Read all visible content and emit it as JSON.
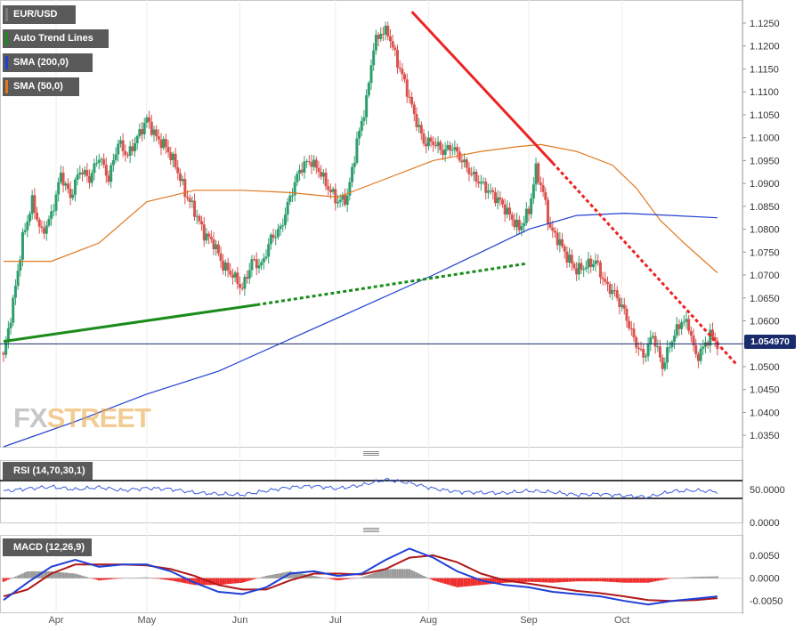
{
  "legend": [
    {
      "label": "EUR/USD",
      "color": "#7a7a7a"
    },
    {
      "label": "Auto Trend Lines",
      "color": "#1a8c1a"
    },
    {
      "label": "SMA (200,0)",
      "color": "#2040d0"
    },
    {
      "label": "SMA (50,0)",
      "color": "#e07820"
    }
  ],
  "current_price_label": "1.054970",
  "watermark": {
    "fx": "FX",
    "street": "STREET"
  },
  "rsi_label": "RSI (14,70,30,1)",
  "macd_label": "MACD (12,26,9)",
  "colors": {
    "up": "#2f9e6e",
    "down": "#d9534f",
    "sma200": "#2040d0",
    "sma50": "#e07820",
    "trend_green": "#1a8c1a",
    "trend_red": "#ee2222",
    "rsi": "#3b5bdb",
    "macd": "#1f3fd6",
    "signal": "#b01818",
    "hist_pos": "#9a9a9a",
    "hist_neg": "#ee2a2a"
  },
  "chart_data": [
    {
      "type": "candlestick",
      "title": "EUR/USD",
      "x_labels": [
        "Apr",
        "May",
        "Jun",
        "Jul",
        "Aug",
        "Sep",
        "Oct"
      ],
      "y_ticks": [
        "1.1250",
        "1.1200",
        "1.1150",
        "1.1100",
        "1.1050",
        "1.1000",
        "1.0950",
        "1.0900",
        "1.0850",
        "1.0800",
        "1.0750",
        "1.0700",
        "1.0650",
        "1.0600",
        "1.0550",
        "1.0500",
        "1.0450",
        "1.0400",
        "1.0350"
      ],
      "ylim": [
        1.0325,
        1.1285
      ],
      "close_points": [
        [
          0,
          1.052
        ],
        [
          4,
          1.064
        ],
        [
          8,
          1.078
        ],
        [
          12,
          1.086
        ],
        [
          16,
          1.079
        ],
        [
          20,
          1.083
        ],
        [
          24,
          1.092
        ],
        [
          28,
          1.087
        ],
        [
          32,
          1.093
        ],
        [
          36,
          1.091
        ],
        [
          40,
          1.096
        ],
        [
          44,
          1.091
        ],
        [
          48,
          1.099
        ],
        [
          52,
          1.096
        ],
        [
          56,
          1.1
        ],
        [
          60,
          1.104
        ],
        [
          64,
          1.1
        ],
        [
          68,
          1.098
        ],
        [
          72,
          1.094
        ],
        [
          76,
          1.088
        ],
        [
          80,
          1.084
        ],
        [
          84,
          1.079
        ],
        [
          88,
          1.077
        ],
        [
          92,
          1.072
        ],
        [
          96,
          1.07
        ],
        [
          100,
          1.067
        ],
        [
          104,
          1.073
        ],
        [
          108,
          1.072
        ],
        [
          112,
          1.078
        ],
        [
          116,
          1.08
        ],
        [
          120,
          1.087
        ],
        [
          124,
          1.093
        ],
        [
          128,
          1.095
        ],
        [
          132,
          1.093
        ],
        [
          136,
          1.089
        ],
        [
          140,
          1.086
        ],
        [
          144,
          1.087
        ],
        [
          148,
          1.099
        ],
        [
          152,
          1.108
        ],
        [
          155,
          1.12
        ],
        [
          158,
          1.123
        ],
        [
          161,
          1.123
        ],
        [
          164,
          1.118
        ],
        [
          168,
          1.112
        ],
        [
          172,
          1.105
        ],
        [
          176,
          1.099
        ],
        [
          180,
          1.099
        ],
        [
          184,
          1.097
        ],
        [
          188,
          1.098
        ],
        [
          192,
          1.095
        ],
        [
          196,
          1.092
        ],
        [
          200,
          1.09
        ],
        [
          204,
          1.088
        ],
        [
          208,
          1.086
        ],
        [
          212,
          1.083
        ],
        [
          216,
          1.08
        ],
        [
          220,
          1.084
        ],
        [
          223,
          1.093
        ],
        [
          226,
          1.088
        ],
        [
          229,
          1.08
        ],
        [
          232,
          1.078
        ],
        [
          236,
          1.074
        ],
        [
          240,
          1.071
        ],
        [
          244,
          1.072
        ],
        [
          248,
          1.073
        ],
        [
          252,
          1.068
        ],
        [
          256,
          1.066
        ],
        [
          260,
          1.062
        ],
        [
          264,
          1.056
        ],
        [
          268,
          1.052
        ],
        [
          272,
          1.057
        ],
        [
          276,
          1.05
        ],
        [
          280,
          1.056
        ],
        [
          284,
          1.06
        ],
        [
          287,
          1.059
        ],
        [
          290,
          1.052
        ],
        [
          293,
          1.054
        ],
        [
          296,
          1.057
        ],
        [
          299,
          1.055
        ]
      ],
      "sma50": [
        [
          0,
          1.073
        ],
        [
          20,
          1.073
        ],
        [
          40,
          1.077
        ],
        [
          60,
          1.086
        ],
        [
          80,
          1.0885
        ],
        [
          100,
          1.0885
        ],
        [
          120,
          1.088
        ],
        [
          140,
          1.087
        ],
        [
          160,
          1.091
        ],
        [
          180,
          1.095
        ],
        [
          200,
          1.097
        ],
        [
          215,
          1.098
        ],
        [
          225,
          1.0985
        ],
        [
          240,
          1.097
        ],
        [
          255,
          1.094
        ],
        [
          265,
          1.089
        ],
        [
          275,
          1.082
        ],
        [
          285,
          1.077
        ],
        [
          299,
          1.0705
        ]
      ],
      "sma200": [
        [
          0,
          1.0325
        ],
        [
          30,
          1.038
        ],
        [
          60,
          1.044
        ],
        [
          90,
          1.049
        ],
        [
          120,
          1.056
        ],
        [
          150,
          1.063
        ],
        [
          180,
          1.07
        ],
        [
          200,
          1.075
        ],
        [
          220,
          1.08
        ],
        [
          240,
          1.083
        ],
        [
          260,
          1.0835
        ],
        [
          280,
          1.083
        ],
        [
          299,
          1.0825
        ]
      ],
      "trend_green_solid": [
        [
          0,
          1.0555
        ],
        [
          106,
          1.0635
        ]
      ],
      "trend_green_dotted": [
        [
          106,
          1.0635
        ],
        [
          219,
          1.0725
        ]
      ],
      "trend_red_solid": [
        [
          171,
          1.1275
        ],
        [
          230,
          1.0945
        ]
      ],
      "trend_red_dotted": [
        [
          230,
          1.0945
        ],
        [
          307,
          1.0505
        ]
      ],
      "current_price": 1.05497
    },
    {
      "type": "line",
      "title": "RSI (14,70,30,1)",
      "y_ticks": [
        "50.0000",
        "0.0000"
      ],
      "ylim": [
        0,
        100
      ],
      "levels": [
        70,
        30
      ],
      "values": [
        [
          0,
          46
        ],
        [
          10,
          52
        ],
        [
          20,
          56
        ],
        [
          30,
          50
        ],
        [
          40,
          55
        ],
        [
          50,
          48
        ],
        [
          60,
          53
        ],
        [
          70,
          51
        ],
        [
          80,
          43
        ],
        [
          90,
          40
        ],
        [
          100,
          38
        ],
        [
          110,
          47
        ],
        [
          120,
          55
        ],
        [
          130,
          58
        ],
        [
          140,
          52
        ],
        [
          150,
          60
        ],
        [
          160,
          72
        ],
        [
          170,
          65
        ],
        [
          180,
          52
        ],
        [
          190,
          45
        ],
        [
          200,
          43
        ],
        [
          210,
          42
        ],
        [
          220,
          47
        ],
        [
          230,
          44
        ],
        [
          240,
          38
        ],
        [
          250,
          40
        ],
        [
          260,
          36
        ],
        [
          270,
          33
        ],
        [
          280,
          46
        ],
        [
          290,
          48
        ],
        [
          299,
          45
        ]
      ]
    },
    {
      "type": "line",
      "title": "MACD (12,26,9)",
      "y_ticks": [
        "0.0050",
        "0.0000",
        "-0.0050"
      ],
      "ylim": [
        -0.0075,
        0.0095
      ],
      "macd": [
        [
          0,
          -0.0048
        ],
        [
          10,
          -0.001
        ],
        [
          20,
          0.0025
        ],
        [
          30,
          0.004
        ],
        [
          40,
          0.0025
        ],
        [
          50,
          0.003
        ],
        [
          60,
          0.003
        ],
        [
          70,
          0.0015
        ],
        [
          80,
          -0.001
        ],
        [
          90,
          -0.003
        ],
        [
          100,
          -0.0035
        ],
        [
          110,
          -0.002
        ],
        [
          120,
          0.001
        ],
        [
          130,
          0.0015
        ],
        [
          140,
          0.0005
        ],
        [
          150,
          0.001
        ],
        [
          160,
          0.004
        ],
        [
          170,
          0.0065
        ],
        [
          180,
          0.0045
        ],
        [
          190,
          0.0015
        ],
        [
          200,
          -0.0005
        ],
        [
          210,
          -0.0015
        ],
        [
          220,
          -0.002
        ],
        [
          230,
          -0.003
        ],
        [
          240,
          -0.0035
        ],
        [
          250,
          -0.004
        ],
        [
          260,
          -0.005
        ],
        [
          270,
          -0.0058
        ],
        [
          280,
          -0.005
        ],
        [
          290,
          -0.0045
        ],
        [
          299,
          -0.004
        ]
      ],
      "signal": [
        [
          0,
          -0.004
        ],
        [
          10,
          -0.0025
        ],
        [
          20,
          0.001
        ],
        [
          30,
          0.003
        ],
        [
          40,
          0.003
        ],
        [
          50,
          0.003
        ],
        [
          60,
          0.0028
        ],
        [
          70,
          0.002
        ],
        [
          80,
          0.0005
        ],
        [
          90,
          -0.0015
        ],
        [
          100,
          -0.0025
        ],
        [
          110,
          -0.0025
        ],
        [
          120,
          -0.0005
        ],
        [
          130,
          0.001
        ],
        [
          140,
          0.001
        ],
        [
          150,
          0.0008
        ],
        [
          160,
          0.002
        ],
        [
          170,
          0.0045
        ],
        [
          180,
          0.005
        ],
        [
          190,
          0.0035
        ],
        [
          200,
          0.001
        ],
        [
          210,
          -0.0005
        ],
        [
          220,
          -0.0012
        ],
        [
          230,
          -0.002
        ],
        [
          240,
          -0.0028
        ],
        [
          250,
          -0.0033
        ],
        [
          260,
          -0.004
        ],
        [
          270,
          -0.0048
        ],
        [
          280,
          -0.005
        ],
        [
          290,
          -0.0048
        ],
        [
          299,
          -0.0044
        ]
      ]
    }
  ]
}
